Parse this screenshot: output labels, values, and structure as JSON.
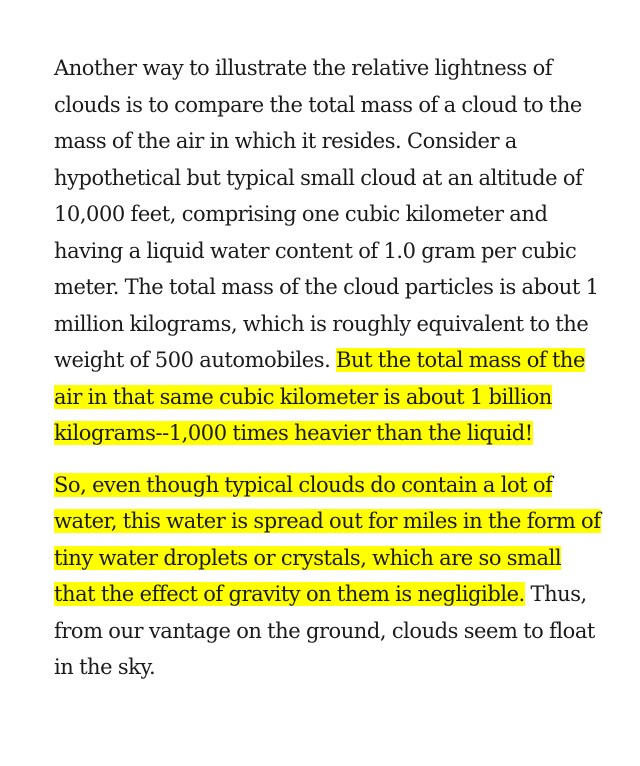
{
  "article": {
    "paragraphs": [
      {
        "segments": [
          {
            "text": "Another way to illustrate the relative lightness of clouds is to compare the total mass of a cloud to the mass of the air in which it resides. Consider a hypothetical but typical small cloud at an altitude of 10,000 feet, comprising one cubic kilometer and having a liquid water content of 1.0 gram per cubic meter. The total mass of the cloud particles is about 1 million kilograms, which is roughly equivalent to the weight of 500 automobiles. ",
            "highlighted": false
          },
          {
            "text": "But the total mass of the air in that same cubic kilometer is about 1 billion kilograms--1,000 times heavier than the liquid!",
            "highlighted": true
          }
        ]
      },
      {
        "segments": [
          {
            "text": "So, even though typical clouds do contain a lot of water, this water is spread out for miles in the form of tiny water droplets or crystals, which are so small that the effect of gravity on them is negligible.",
            "highlighted": true
          },
          {
            "text": " Thus, from our vantage on the ground, clouds seem to float in the sky.",
            "highlighted": false
          }
        ]
      }
    ],
    "highlight_color": "#ffff00"
  }
}
